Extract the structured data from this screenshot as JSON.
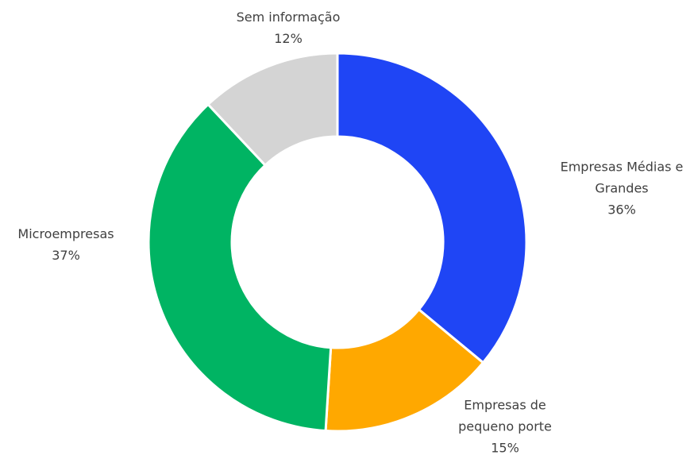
{
  "chart_data": {
    "type": "donut",
    "categories": [
      "Empresas Médias e Grandes",
      "Empresas de pequeno porte",
      "Microempresas",
      "Sem informação"
    ],
    "values": [
      36,
      15,
      37,
      12
    ],
    "value_labels": [
      "36%",
      "15%",
      "37%",
      "12%"
    ],
    "colors": [
      "#1f45f5",
      "#ffa800",
      "#00b463",
      "#d4d4d4"
    ]
  }
}
